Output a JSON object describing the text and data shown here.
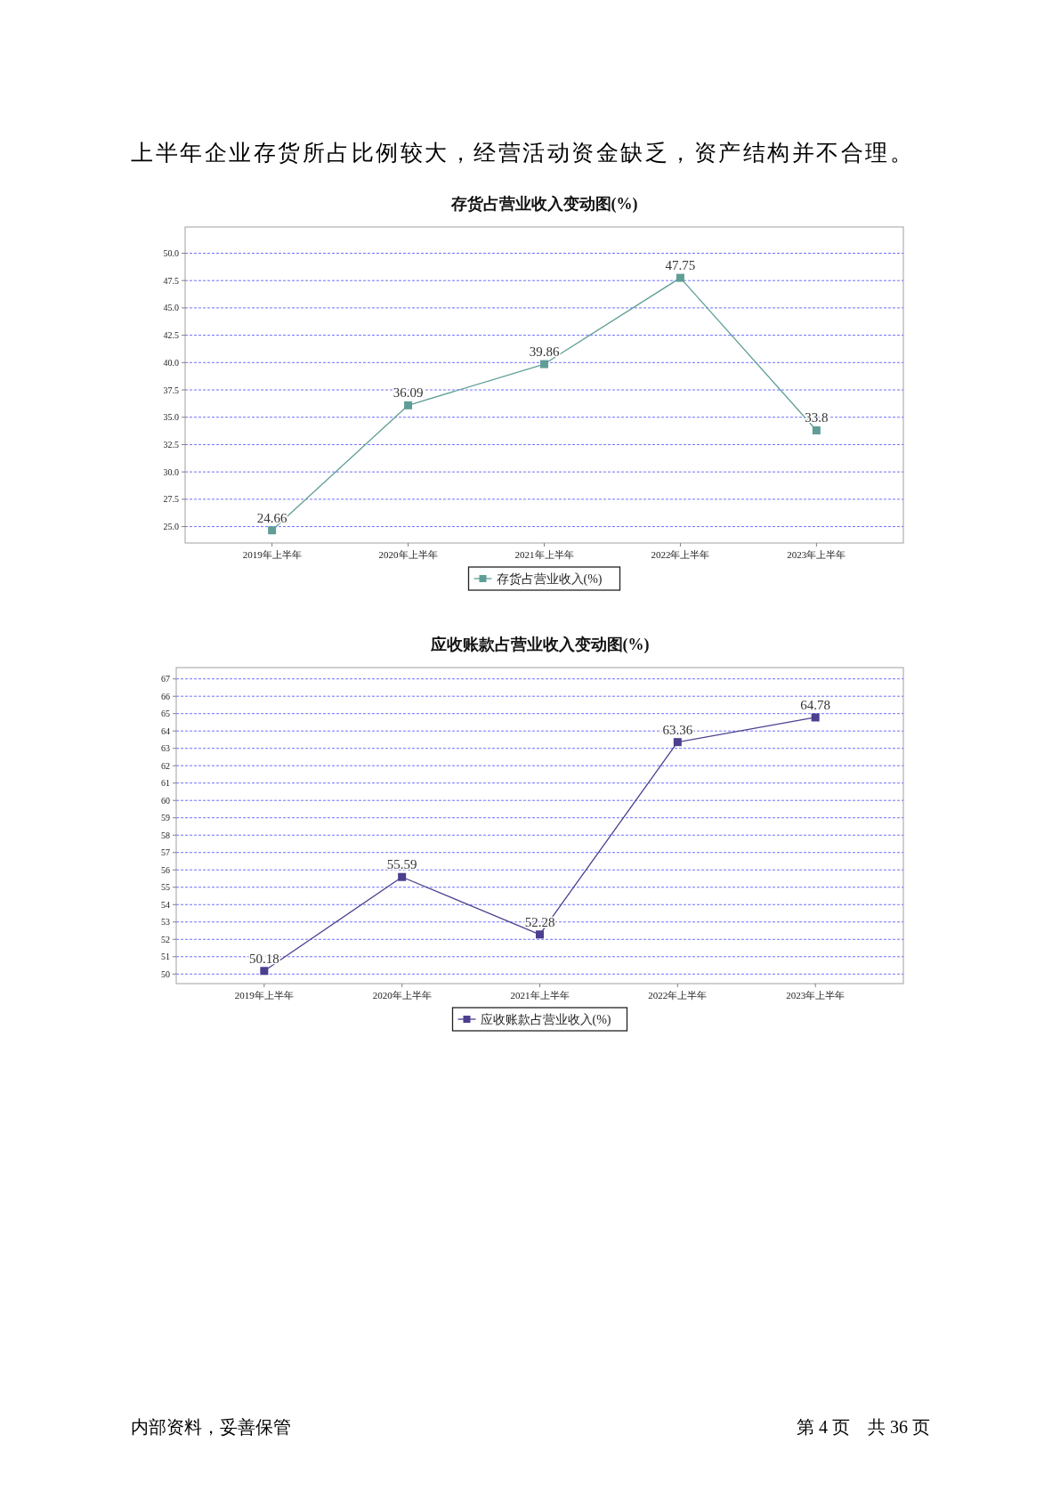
{
  "chart_data": [
    {
      "type": "line",
      "title": "存货占营业收入变动图(%)",
      "categories": [
        "2019年上半年",
        "2020年上半年",
        "2021年上半年",
        "2022年上半年",
        "2023年上半年"
      ],
      "series": [
        {
          "name": "存货占营业收入(%)",
          "color": "#5f9e96",
          "values": [
            24.66,
            36.09,
            39.86,
            47.75,
            33.8
          ]
        }
      ],
      "ylim": [
        23.5,
        52.4
      ],
      "yticks": [
        {
          "value": 25,
          "label": "25.0"
        },
        {
          "value": 27.5,
          "label": "27.5"
        },
        {
          "value": 30,
          "label": "30.0"
        },
        {
          "value": 32.5,
          "label": "32.5"
        },
        {
          "value": 35,
          "label": "35.0"
        },
        {
          "value": 37.5,
          "label": "37.5"
        },
        {
          "value": 40,
          "label": "40.0"
        },
        {
          "value": 42.5,
          "label": "42.5"
        },
        {
          "value": 45,
          "label": "45.0"
        },
        {
          "value": 47.5,
          "label": "47.5"
        },
        {
          "value": 50,
          "label": "50.0"
        }
      ],
      "grid": "y",
      "legend": "bottom",
      "marker": "square",
      "line_style": "solid",
      "data_labels": true,
      "annotations": [
        "上半年企业存货所占比例较大，经营活动资金缺乏，资产结构并不合理。"
      ]
    },
    {
      "type": "line",
      "title": "应收账款占营业收入变动图(%)",
      "categories": [
        "2019年上半年",
        "2020年上半年",
        "2021年上半年",
        "2022年上半年",
        "2023年上半年"
      ],
      "series": [
        {
          "name": "应收账款占营业收入(%)",
          "color": "#4b3f8f",
          "values": [
            50.18,
            55.59,
            52.28,
            63.36,
            64.78
          ]
        }
      ],
      "ylim": [
        49.45,
        67.65
      ],
      "yticks": [
        50,
        51,
        52,
        53,
        54,
        55,
        56,
        57,
        58,
        59,
        60,
        61,
        62,
        63,
        64,
        65,
        66,
        67
      ],
      "grid": "y",
      "legend": "bottom",
      "marker": "square",
      "line_style": "solid",
      "data_labels": true,
      "annotations": [
        "内部资料，妥善保管",
        "第 4 页　共 36 页"
      ]
    }
  ]
}
